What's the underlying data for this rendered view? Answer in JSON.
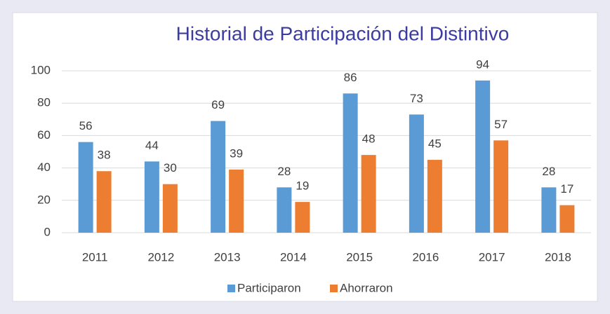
{
  "chart_data": {
    "type": "bar",
    "title": "Historial de Participación del Distintivo",
    "categories": [
      "2011",
      "2012",
      "2013",
      "2014",
      "2015",
      "2016",
      "2017",
      "2018"
    ],
    "series": [
      {
        "name": "Participaron",
        "color": "#5b9bd5",
        "values": [
          56,
          44,
          69,
          28,
          86,
          73,
          94,
          28
        ]
      },
      {
        "name": "Ahorraron",
        "color": "#ed7d31",
        "values": [
          38,
          30,
          39,
          19,
          48,
          45,
          57,
          17
        ]
      }
    ],
    "ylim": [
      0,
      100
    ],
    "yticks": [
      0,
      20,
      40,
      60,
      80,
      100
    ],
    "grid": true,
    "legend": "bottom"
  }
}
